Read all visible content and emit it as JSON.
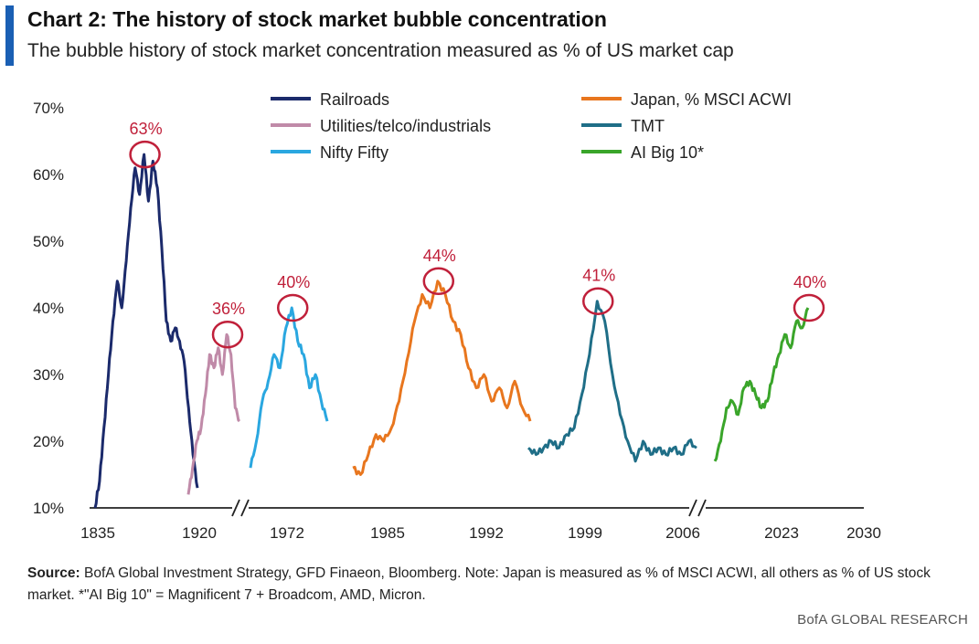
{
  "header": {
    "title": "Chart 2: The history of stock market bubble concentration",
    "subtitle": "The bubble history of stock market concentration measured as % of US market cap",
    "accent_color": "#1a5fb4"
  },
  "footer": {
    "source_label": "Source:",
    "source_text": "BofA Global Investment Strategy, GFD Finaeon, Bloomberg. Note: Japan is measured as % of MSCI ACWI, all others as % of US stock market. *\"AI Big 10\" = Magnificent 7 + Broadcom, AMD, Micron.",
    "brand": "BofA GLOBAL RESEARCH"
  },
  "chart_data": {
    "type": "line",
    "title": "Chart 2: The history of stock market bubble concentration",
    "subtitle": "The bubble history of stock market concentration measured as % of US market cap",
    "y_ticks": [
      "10%",
      "20%",
      "30%",
      "40%",
      "50%",
      "60%",
      "70%"
    ],
    "ylim": [
      10,
      70
    ],
    "x_ticks": [
      "1835",
      "1920",
      "1972",
      "1985",
      "1992",
      "1999",
      "2006",
      "2023",
      "2030"
    ],
    "axis_breaks": "two breaks on the x-axis (after 1920 and after 2006)",
    "grid": false,
    "legend_position": "top",
    "series": [
      {
        "name": "Railroads",
        "color": "#1b2a6b",
        "values": [
          10,
          14,
          22,
          30,
          38,
          44,
          40,
          47,
          55,
          61,
          57,
          63,
          56,
          62,
          58,
          49,
          38,
          35,
          37,
          35,
          32,
          25,
          18,
          13
        ]
      },
      {
        "name": "Utilities/telco/industrials",
        "color": "#c08aa8",
        "values": [
          12,
          16,
          20,
          22,
          27,
          33,
          31,
          34,
          30,
          36,
          33,
          25,
          23
        ]
      },
      {
        "name": "Nifty Fifty",
        "color": "#2aa7e0",
        "values": [
          16,
          20,
          26,
          29,
          33,
          31,
          37,
          40,
          35,
          33,
          28,
          30,
          26,
          23
        ]
      },
      {
        "name": "Japan, % MSCI ACWI",
        "color": "#e8761e",
        "values": [
          16,
          15,
          18,
          21,
          20,
          22,
          26,
          32,
          38,
          42,
          40,
          44,
          42,
          38,
          36,
          31,
          28,
          30,
          26,
          28,
          25,
          29,
          25,
          23
        ]
      },
      {
        "name": "TMT",
        "color": "#1f6e87",
        "values": [
          19,
          18,
          19,
          20,
          19,
          21,
          22,
          27,
          33,
          41,
          38,
          30,
          24,
          20,
          17,
          20,
          18,
          19,
          18,
          19,
          18,
          20,
          19
        ]
      },
      {
        "name": "AI Big 10*",
        "color": "#3aa52a",
        "values": [
          17,
          20,
          25,
          26,
          24,
          28,
          29,
          27,
          25,
          26,
          30,
          33,
          36,
          34,
          38,
          37,
          40
        ]
      }
    ],
    "annotations": [
      {
        "label": "63%",
        "series": "Railroads",
        "value": 63
      },
      {
        "label": "36%",
        "series": "Utilities/telco/industrials",
        "value": 36
      },
      {
        "label": "40%",
        "series": "Nifty Fifty",
        "value": 40
      },
      {
        "label": "44%",
        "series": "Japan, % MSCI ACWI",
        "value": 44
      },
      {
        "label": "41%",
        "series": "TMT",
        "value": 41
      },
      {
        "label": "40%",
        "series": "AI Big 10*",
        "value": 40
      }
    ],
    "annotation_color": "#c0203a"
  }
}
